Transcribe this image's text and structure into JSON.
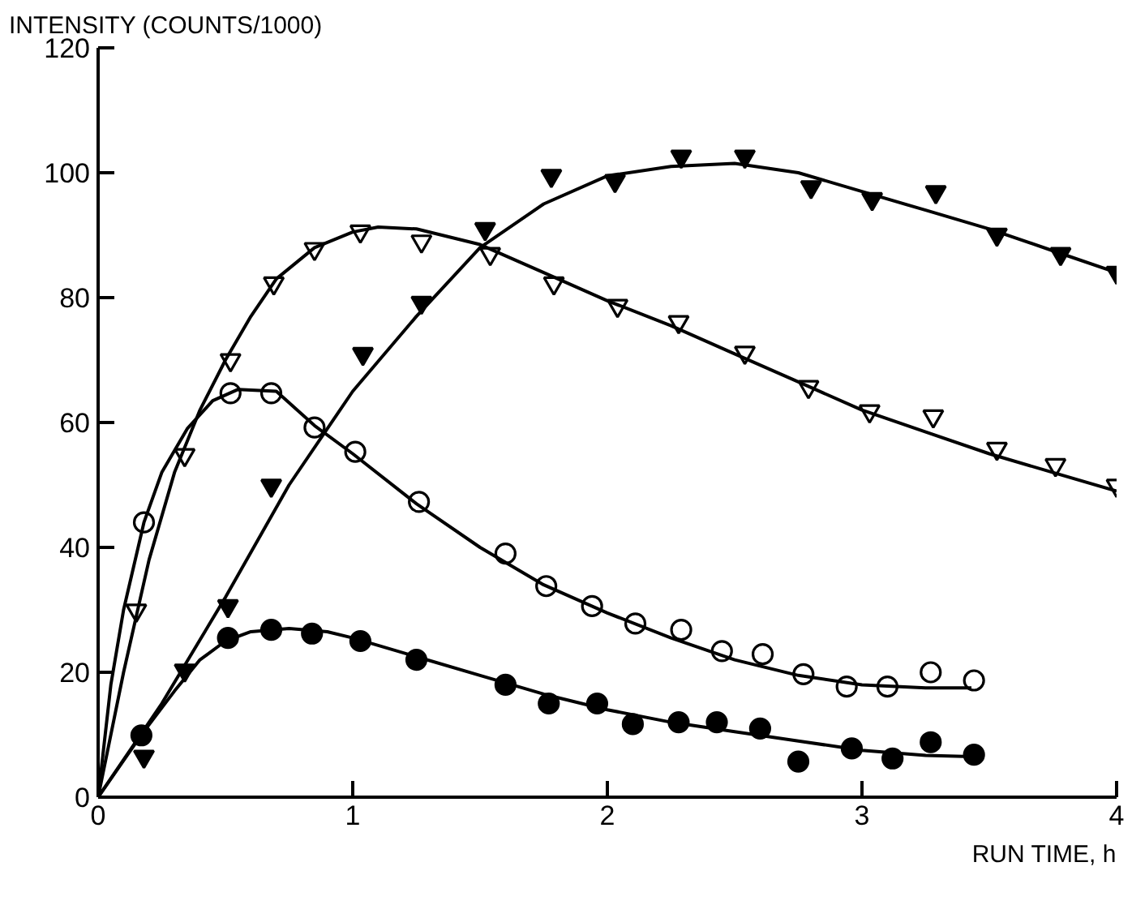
{
  "chart_data": {
    "type": "scatter",
    "xlabel": "RUN TIME, h",
    "ylabel": "INTENSITY (COUNTS/1000)",
    "xlim": [
      0,
      4
    ],
    "ylim": [
      0,
      120
    ],
    "xticks": [
      0,
      1,
      2,
      3,
      4
    ],
    "yticks": [
      0,
      20,
      40,
      60,
      80,
      100,
      120
    ],
    "grid": false,
    "series": [
      {
        "marker": "triangle",
        "color": "#000000",
        "x": [
          0.18,
          0.34,
          0.51,
          0.68,
          1.04,
          1.27,
          1.52,
          1.78,
          2.03,
          2.29,
          2.54,
          2.8,
          3.04,
          3.29,
          3.53,
          3.78,
          4.0
        ],
        "values": [
          6.5,
          20.3,
          30.6,
          49.9,
          71,
          79.2,
          91,
          99.5,
          98.7,
          102.6,
          102.6,
          97.7,
          95.8,
          96.9,
          90.1,
          87,
          84
        ]
      },
      {
        "marker": "triangle",
        "color": "#ffffff",
        "x": [
          0.15,
          0.34,
          0.52,
          0.69,
          0.85,
          1.03,
          1.27,
          1.54,
          1.79,
          2.04,
          2.28,
          2.54,
          2.79,
          3.03,
          3.28,
          3.53,
          3.76,
          4.0
        ],
        "values": [
          29.9,
          54.8,
          70,
          82.3,
          87.8,
          90.6,
          89,
          87,
          82.3,
          78.7,
          76.1,
          71.2,
          65.7,
          61.8,
          61,
          55.8,
          53.2,
          49.9
        ]
      },
      {
        "marker": "circle",
        "color": "#ffffff",
        "x": [
          0.18,
          0.52,
          0.68,
          0.85,
          1.01,
          1.26,
          1.6,
          1.76,
          1.94,
          2.11,
          2.29,
          2.45,
          2.61,
          2.77,
          2.94,
          3.1,
          3.27,
          3.44
        ],
        "values": [
          44,
          64.7,
          64.7,
          59.2,
          55.3,
          47.3,
          39,
          33.8,
          30.6,
          27.8,
          26.8,
          23.4,
          22.9,
          19.7,
          17.7,
          17.7,
          20,
          18.7
        ]
      },
      {
        "marker": "circle",
        "color": "#000000",
        "x": [
          0.17,
          0.51,
          0.68,
          0.84,
          1.03,
          1.25,
          1.6,
          1.77,
          1.96,
          2.1,
          2.28,
          2.43,
          2.6,
          2.75,
          2.96,
          3.12,
          3.27,
          3.44
        ],
        "values": [
          9.9,
          25.5,
          26.8,
          26.2,
          25,
          22,
          18,
          15,
          15,
          11.7,
          12,
          12,
          11,
          5.7,
          7.8,
          6.2,
          8.8,
          6.8
        ]
      },
      {
        "type": "line",
        "marker": "none",
        "line_style": "solid",
        "color": "#000000",
        "x": [
          0,
          0.25,
          0.5,
          0.75,
          1.0,
          1.25,
          1.5,
          1.75,
          2.0,
          2.25,
          2.5,
          2.75,
          3.0,
          3.25,
          3.5,
          3.75,
          4.0
        ],
        "values": [
          0,
          15,
          32,
          50,
          65,
          77,
          88,
          95,
          99.5,
          101,
          101.5,
          100,
          97,
          94,
          91,
          87.5,
          84
        ]
      },
      {
        "type": "line",
        "marker": "none",
        "line_style": "solid",
        "color": "#000000",
        "x": [
          0,
          0.1,
          0.2,
          0.3,
          0.4,
          0.5,
          0.6,
          0.7,
          0.85,
          1.0,
          1.1,
          1.25,
          1.5,
          1.75,
          2.0,
          2.25,
          2.5,
          2.75,
          3.0,
          3.25,
          3.5,
          3.75,
          4.0
        ],
        "values": [
          0,
          20,
          38,
          52,
          62,
          70,
          77,
          83,
          88,
          90.5,
          91.3,
          91,
          88.5,
          84,
          79.5,
          75.5,
          71,
          66.5,
          62,
          58.5,
          55,
          52,
          49
        ]
      },
      {
        "type": "line",
        "marker": "none",
        "line_style": "solid",
        "color": "#000000",
        "x": [
          0,
          0.05,
          0.1,
          0.18,
          0.25,
          0.35,
          0.45,
          0.55,
          0.7,
          0.85,
          1.0,
          1.25,
          1.5,
          1.75,
          2.0,
          2.25,
          2.5,
          2.75,
          3.0,
          3.25,
          3.43
        ],
        "values": [
          0,
          18,
          30,
          44,
          52,
          59,
          63.5,
          65.3,
          65,
          59.5,
          55,
          47,
          40,
          34,
          29.5,
          25.5,
          22,
          19.5,
          18,
          17.5,
          17.5
        ]
      },
      {
        "type": "line",
        "marker": "none",
        "line_style": "solid",
        "color": "#000000",
        "x": [
          0,
          0.17,
          0.3,
          0.4,
          0.5,
          0.6,
          0.75,
          0.9,
          1.0,
          1.25,
          1.5,
          1.75,
          2.0,
          2.25,
          2.5,
          2.75,
          3.0,
          3.25,
          3.43
        ],
        "values": [
          0,
          10,
          17,
          22,
          25,
          26.5,
          27,
          26.5,
          25.5,
          22.5,
          19.5,
          16.5,
          14,
          12,
          10.5,
          9,
          7.5,
          6.7,
          6.5
        ]
      }
    ]
  }
}
